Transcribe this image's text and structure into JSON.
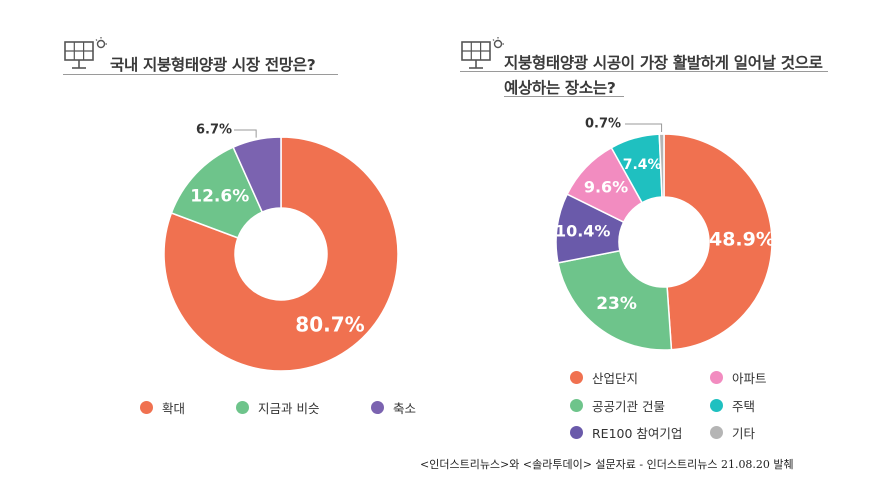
{
  "chart_data": [
    {
      "type": "pie",
      "title": "국내 지붕형태양광 시장 전망은?",
      "categories": [
        "확대",
        "지금과 비슷",
        "축소"
      ],
      "values": [
        80.7,
        12.6,
        6.7
      ],
      "labels": [
        "80.7%",
        "12.6%",
        "6.7%"
      ],
      "colors": [
        "#f07150",
        "#6ec48b",
        "#7b63b0"
      ],
      "legend_position": "bottom"
    },
    {
      "type": "pie",
      "title": "지붕형태양광 시공이 가장 활발하게 일어날 것으로 예상하는 장소는?",
      "title_line1": "지붕형태양광 시공이 가장 활발하게 일어날 것으로",
      "title_line2": "예상하는 장소는?",
      "categories": [
        "산업단지",
        "공공기관 건물",
        "RE100 참여기업",
        "아파트",
        "주택",
        "기타"
      ],
      "values": [
        48.9,
        23,
        10.4,
        9.6,
        7.4,
        0.7
      ],
      "labels": [
        "48.9%",
        "23%",
        "10.4%",
        "9.6%",
        "7.4%",
        "0.7%"
      ],
      "colors": [
        "#f07150",
        "#6ec48b",
        "#6a5aaa",
        "#f28cc0",
        "#1fc0c0",
        "#b5b5b5"
      ],
      "legend_position": "bottom"
    }
  ],
  "source": "<인더스트리뉴스>와 <솔라투데이> 설문자료 - 인더스트리뉴스 21.08.20 발췌",
  "icons": {
    "panel": "solar-panel-icon"
  }
}
